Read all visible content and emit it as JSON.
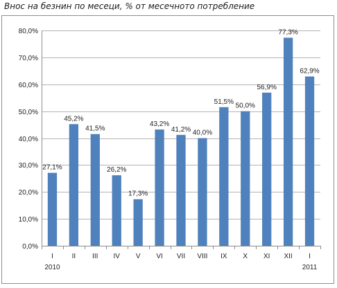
{
  "chart_data": {
    "type": "bar",
    "title": "Внос на безнин по месеци, % от месечното потребление",
    "categories": [
      "I",
      "II",
      "III",
      "IV",
      "V",
      "VI",
      "VII",
      "VIII",
      "IX",
      "X",
      "XI",
      "XII",
      "I"
    ],
    "year_labels": [
      {
        "text": "2010",
        "category_index": 0
      },
      {
        "text": "2011",
        "category_index": 12
      }
    ],
    "values": [
      27.1,
      45.2,
      41.5,
      26.2,
      17.3,
      43.2,
      41.2,
      40.0,
      51.5,
      50.0,
      56.9,
      77.3,
      62.9
    ],
    "value_labels": [
      "27,1%",
      "45,2%",
      "41,5%",
      "26,2%",
      "17,3%",
      "43,2%",
      "41,2%",
      "40,0%",
      "51,5%",
      "50,0%",
      "56,9%",
      "77,3%",
      "62,9%"
    ],
    "yticks": [
      "0,0%",
      "10,0%",
      "20,0%",
      "30,0%",
      "40,0%",
      "50,0%",
      "60,0%",
      "70,0%",
      "80,0%"
    ],
    "ylim": [
      0,
      80
    ],
    "grid": true,
    "bar_color": "#4f81bd",
    "grid_color": "#b3b3b3"
  }
}
